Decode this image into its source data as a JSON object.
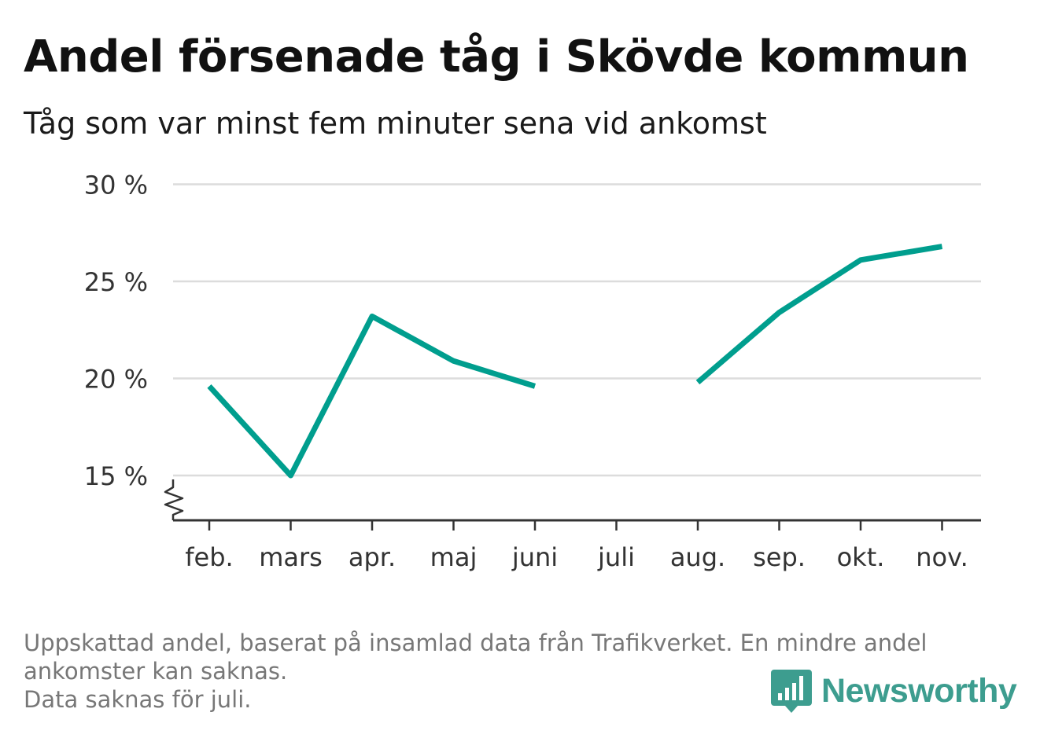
{
  "header": {
    "title": "Andel försenade tåg i Skövde kommun",
    "subtitle": "Tåg som var minst fem minuter sena vid ankomst"
  },
  "chart_data": {
    "type": "line",
    "categories": [
      "feb.",
      "mars",
      "apr.",
      "maj",
      "juni",
      "juli",
      "aug.",
      "sep.",
      "okt.",
      "nov."
    ],
    "series": [
      {
        "values": [
          19.6,
          15.0,
          23.2,
          20.9,
          19.6,
          null,
          19.8,
          23.4,
          26.1,
          26.8
        ],
        "color": "#009e8e"
      }
    ],
    "ylim": [
      13,
      30
    ],
    "yticks": [
      15,
      20,
      25,
      30
    ],
    "ytick_labels": [
      "15 %",
      "20 %",
      "25 %",
      "30 %"
    ],
    "y_axis_break": true,
    "grid": true,
    "xlabel": "",
    "ylabel": ""
  },
  "footer": {
    "notes": [
      "Uppskattad andel, baserat på insamlad data från Trafikverket. En mindre andel",
      "ankomster kan saknas.",
      "Data saknas för juli."
    ]
  },
  "brand": {
    "name": "Newsworthy",
    "color": "#3d9d8f",
    "icon": "bar-chart-speech-bubble-icon"
  }
}
